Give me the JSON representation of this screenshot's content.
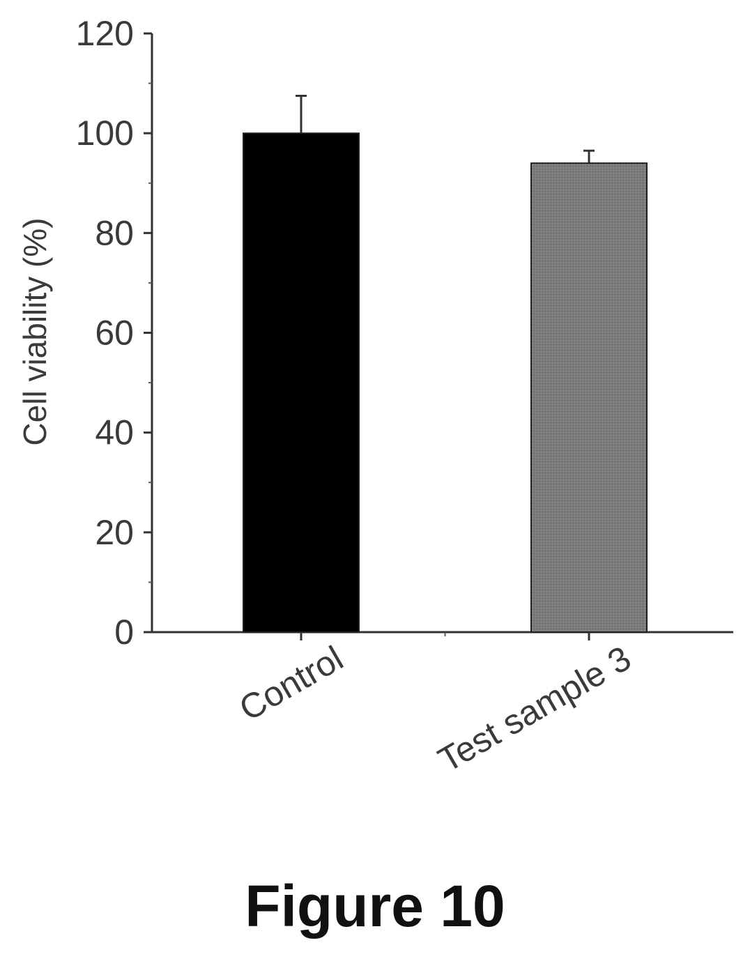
{
  "chart_data": {
    "type": "bar",
    "categories": [
      "Control",
      "Test sample 3"
    ],
    "values": [
      100,
      94
    ],
    "errors": [
      7.5,
      2.5
    ],
    "ylabel": "Cell viability (%)",
    "xlabel": "",
    "ylim": [
      0,
      120
    ],
    "yticks": [
      0,
      20,
      40,
      60,
      80,
      100,
      120
    ],
    "bar_colors": [
      "#000000",
      "#7a7a7a"
    ],
    "grid": false
  },
  "figure_caption": "Figure 10"
}
